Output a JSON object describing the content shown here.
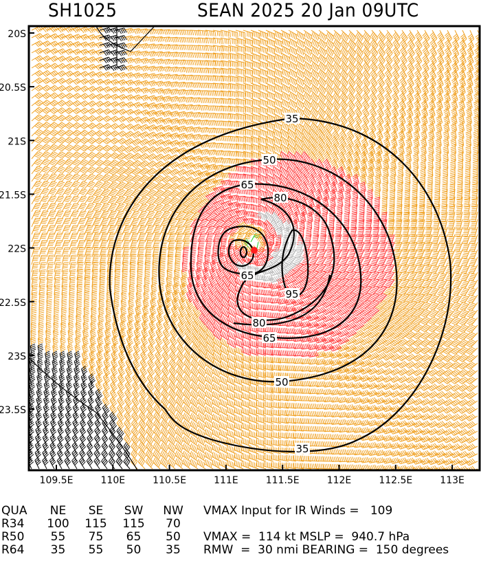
{
  "header": {
    "storm_id": "SH1025",
    "title": "SEAN 2025 20 Jan 09UTC"
  },
  "map": {
    "lat_labels": [
      "20S",
      "20.5S",
      "21S",
      "21.5S",
      "22S",
      "22.5S",
      "23S",
      "23.5S"
    ],
    "lon_labels": [
      "109.5E",
      "110E",
      "110.5E",
      "111E",
      "111.5E",
      "112E",
      "112.5E",
      "113E"
    ],
    "contour_labels": [
      "35",
      "50",
      "65",
      "80",
      "95",
      "65",
      "80",
      "65",
      "50",
      "35"
    ],
    "contour_levels_kt": [
      35,
      50,
      65,
      80,
      95
    ],
    "center": {
      "lat": -21.95,
      "lon": 111.25
    },
    "colors": {
      "below_34": "#22cc22",
      "kt34_50": "#f0a020",
      "kt64_95": "#ff4040",
      "above_95": "#b8b8b8",
      "land": "#000000",
      "center": "#ff2020"
    }
  },
  "table": {
    "header": [
      "QUA",
      "NE",
      "SE",
      "SW",
      "NW"
    ],
    "rows": [
      [
        "R34",
        "100",
        "115",
        "115",
        "70"
      ],
      [
        "R50",
        "55",
        "75",
        "65",
        "50"
      ],
      [
        "R64",
        "35",
        "55",
        "50",
        "35"
      ]
    ],
    "notes": [
      "VMAX Input for IR Winds =   109",
      "",
      "VMAX =  114 kt MSLP =  940.7 hPa",
      "RMW  =  30 nmi BEARING =  150 degrees"
    ]
  }
}
